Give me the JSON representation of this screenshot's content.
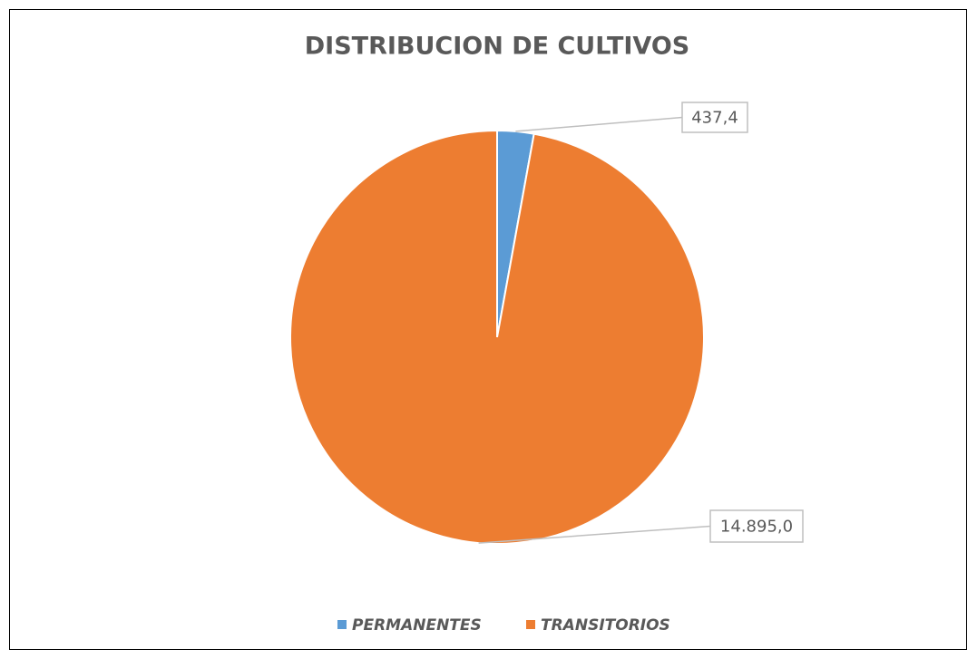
{
  "chart_data": {
    "type": "pie",
    "title": "DISTRIBUCION DE CULTIVOS",
    "categories": [
      "PERMANENTES",
      "TRANSITORIOS"
    ],
    "values": [
      437.4,
      14895.0
    ],
    "value_labels": [
      "437,4",
      "14.895,0"
    ],
    "colors": [
      "#5b9bd5",
      "#ed7d31"
    ],
    "legend": "bottom"
  }
}
